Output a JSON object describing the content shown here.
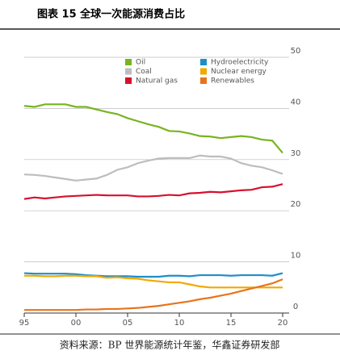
{
  "chart_data": {
    "type": "line",
    "title": "图表 15 全球一次能源消费占比",
    "source": "资料来源：BP 世界能源统计年鉴，华鑫证券研发部",
    "x": [
      1995,
      1996,
      1997,
      1998,
      1999,
      2000,
      2001,
      2002,
      2003,
      2004,
      2005,
      2006,
      2007,
      2008,
      2009,
      2010,
      2011,
      2012,
      2013,
      2014,
      2015,
      2016,
      2017,
      2018,
      2019,
      2020
    ],
    "xlim": [
      1995,
      2020
    ],
    "xticks": [
      {
        "value": 1995,
        "label": "95"
      },
      {
        "value": 2000,
        "label": "00"
      },
      {
        "value": 2005,
        "label": "05"
      },
      {
        "value": 2010,
        "label": "10"
      },
      {
        "value": 2015,
        "label": "15"
      },
      {
        "value": 2020,
        "label": "20"
      }
    ],
    "ylim": [
      0,
      50
    ],
    "yticks": [
      0,
      10,
      20,
      30,
      40,
      50
    ],
    "grid": true,
    "series": [
      {
        "name": "Oil",
        "color": "#78b41e",
        "values": [
          40.5,
          40.3,
          40.8,
          40.8,
          40.8,
          40.3,
          40.3,
          39.8,
          39.3,
          38.9,
          38.1,
          37.5,
          36.9,
          36.4,
          35.6,
          35.5,
          35.1,
          34.6,
          34.5,
          34.2,
          34.4,
          34.6,
          34.4,
          33.9,
          33.7,
          31.3
        ]
      },
      {
        "name": "Coal",
        "color": "#bdbdbd",
        "values": [
          27.1,
          27.0,
          26.8,
          26.5,
          26.2,
          25.9,
          26.1,
          26.3,
          27.0,
          28.0,
          28.5,
          29.3,
          29.8,
          30.2,
          30.3,
          30.3,
          30.3,
          30.8,
          30.6,
          30.6,
          30.2,
          29.3,
          28.8,
          28.5,
          27.9,
          27.2
        ]
      },
      {
        "name": "Natural gas",
        "color": "#d7102e",
        "values": [
          22.3,
          22.6,
          22.4,
          22.6,
          22.8,
          22.9,
          23.0,
          23.1,
          23.0,
          23.0,
          23.0,
          22.8,
          22.8,
          22.9,
          23.1,
          23.0,
          23.4,
          23.5,
          23.7,
          23.6,
          23.8,
          24.0,
          24.1,
          24.6,
          24.7,
          25.2
        ]
      },
      {
        "name": "Hydroelectricity",
        "color": "#1e8ec8",
        "values": [
          7.8,
          7.7,
          7.7,
          7.7,
          7.7,
          7.6,
          7.4,
          7.3,
          7.2,
          7.2,
          7.2,
          7.1,
          7.1,
          7.1,
          7.3,
          7.3,
          7.2,
          7.4,
          7.4,
          7.4,
          7.3,
          7.4,
          7.4,
          7.4,
          7.3,
          7.8
        ]
      },
      {
        "name": "Nuclear energy",
        "color": "#f2a900",
        "values": [
          7.3,
          7.3,
          7.2,
          7.2,
          7.3,
          7.3,
          7.2,
          7.2,
          6.9,
          7.0,
          6.8,
          6.7,
          6.4,
          6.2,
          6.0,
          6.0,
          5.6,
          5.2,
          5.0,
          5.0,
          5.0,
          5.0,
          5.0,
          5.0,
          5.0,
          5.0
        ]
      },
      {
        "name": "Renewables",
        "color": "#e8731c",
        "values": [
          0.6,
          0.6,
          0.6,
          0.6,
          0.6,
          0.6,
          0.7,
          0.7,
          0.8,
          0.8,
          0.9,
          1.0,
          1.2,
          1.4,
          1.7,
          2.0,
          2.3,
          2.7,
          3.0,
          3.4,
          3.8,
          4.3,
          4.8,
          5.3,
          5.8,
          6.6
        ]
      }
    ]
  }
}
